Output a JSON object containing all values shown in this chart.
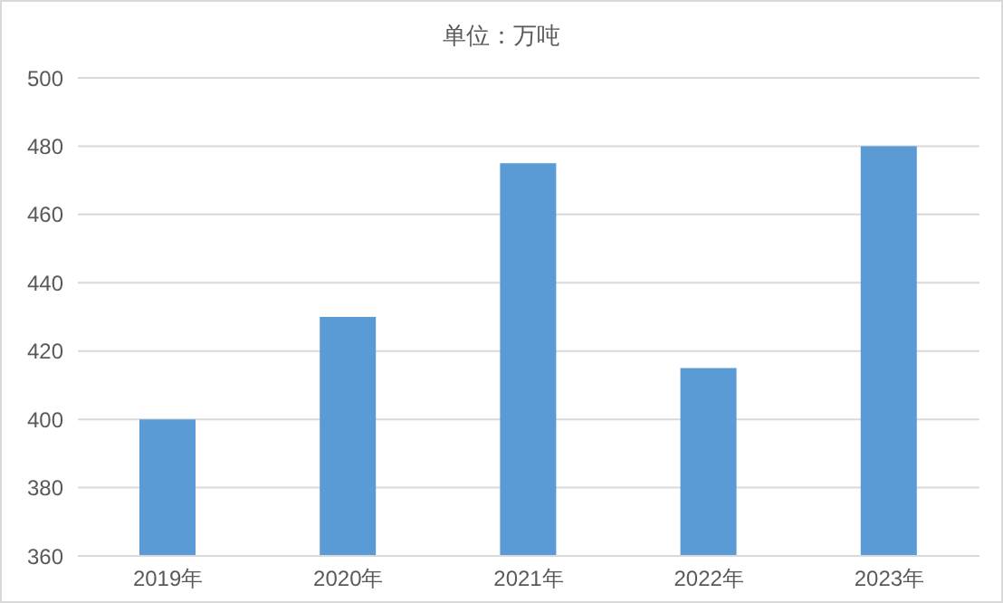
{
  "chart_data": {
    "type": "bar",
    "title": "单位：万吨",
    "categories": [
      "2019年",
      "2020年",
      "2021年",
      "2022年",
      "2023年"
    ],
    "values": [
      400,
      430,
      475,
      415,
      480
    ],
    "color": "#5b9bd5",
    "ylim": [
      360,
      500
    ],
    "yticks": [
      360,
      380,
      400,
      420,
      440,
      460,
      480,
      500
    ],
    "grid": "y"
  }
}
